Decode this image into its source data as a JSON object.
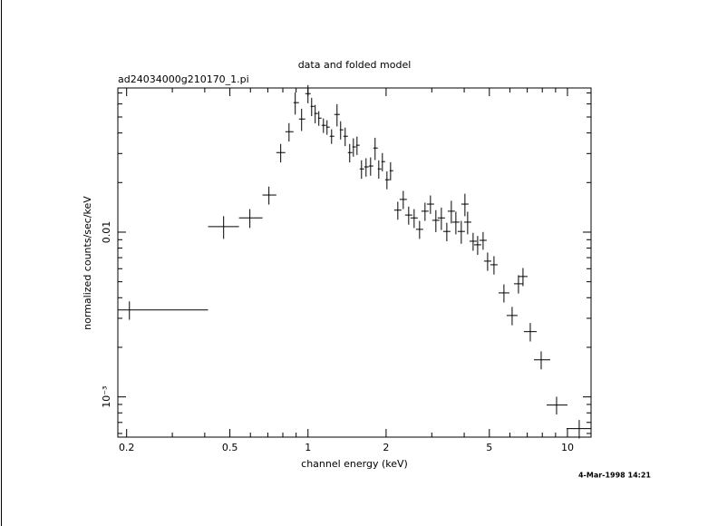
{
  "chart_data": {
    "type": "errorbar",
    "title": "data and folded model",
    "subtitle": "ad24034000g210170_1.pi",
    "x_label": "channel energy (keV)",
    "y_label": "normalized counts/sec/keV",
    "annotation": "4-Mar-1998 14:21",
    "xscale": "log",
    "yscale": "log",
    "xlim": [
      0.185,
      12.33
    ],
    "ylim": [
      0.00057,
      0.075
    ],
    "xticks": [
      0.2,
      0.5,
      1,
      2,
      5,
      10
    ],
    "yticks": [
      0.01,
      {
        "value": 0.001,
        "label": "10⁻³"
      }
    ],
    "xminorticks": [
      0.3,
      0.4,
      0.6,
      0.7,
      0.8,
      0.9,
      3,
      4,
      6,
      7,
      8,
      9
    ],
    "yminorticks": [
      0.0006,
      0.0007,
      0.0008,
      0.0009,
      0.002,
      0.003,
      0.004,
      0.005,
      0.006,
      0.007,
      0.008,
      0.009,
      0.02,
      0.03,
      0.04,
      0.05,
      0.06,
      0.07
    ],
    "series": [
      {
        "color": "#000000",
        "x": [
          0.205,
          0.473,
          0.597,
          0.707,
          0.785,
          0.845,
          0.893,
          0.945,
          1.0,
          1.033,
          1.066,
          1.101,
          1.147,
          1.184,
          1.233,
          1.294,
          1.336,
          1.391,
          1.448,
          1.496,
          1.545,
          1.608,
          1.674,
          1.743,
          1.814,
          1.874,
          1.935,
          2.015,
          2.081,
          2.219,
          2.329,
          2.444,
          2.565,
          2.692,
          2.825,
          2.965,
          3.111,
          3.266,
          3.428,
          3.568,
          3.715,
          3.898,
          4.026,
          4.124,
          4.329,
          4.507,
          4.73,
          4.924,
          5.21,
          5.691,
          6.12,
          6.474,
          6.74,
          7.19,
          7.92,
          9.079,
          11.1
        ],
        "x_low": [
          0.185,
          0.412,
          0.542,
          0.668,
          0.755,
          0.818,
          0.879,
          0.923,
          0.976,
          1.024,
          1.058,
          1.093,
          1.128,
          1.175,
          1.213,
          1.263,
          1.326,
          1.369,
          1.425,
          1.483,
          1.532,
          1.582,
          1.647,
          1.715,
          1.785,
          1.858,
          1.919,
          1.983,
          2.064,
          2.149,
          2.255,
          2.367,
          2.484,
          2.607,
          2.736,
          2.871,
          3.013,
          3.162,
          3.319,
          3.455,
          3.597,
          3.775,
          3.898,
          3.994,
          4.191,
          4.364,
          4.58,
          4.769,
          5.045,
          5.425,
          5.831,
          6.219,
          6.474,
          6.794,
          7.426,
          8.312,
          9.92
        ],
        "x_high": [
          0.412,
          0.542,
          0.668,
          0.755,
          0.818,
          0.879,
          0.923,
          0.976,
          1.024,
          1.058,
          1.093,
          1.128,
          1.175,
          1.213,
          1.263,
          1.326,
          1.369,
          1.425,
          1.483,
          1.532,
          1.582,
          1.647,
          1.715,
          1.785,
          1.858,
          1.919,
          1.983,
          2.064,
          2.131,
          2.292,
          2.405,
          2.524,
          2.649,
          2.78,
          2.917,
          3.062,
          3.213,
          3.373,
          3.54,
          3.685,
          3.836,
          4.026,
          4.158,
          4.26,
          4.471,
          4.655,
          4.885,
          5.086,
          5.381,
          5.973,
          6.422,
          6.74,
          7.018,
          7.607,
          8.583,
          10.0,
          12.33
        ],
        "values": [
          0.00337,
          0.0108,
          0.0122,
          0.0168,
          0.0304,
          0.0407,
          0.0611,
          0.0486,
          0.0693,
          0.058,
          0.0525,
          0.0492,
          0.0445,
          0.0434,
          0.0382,
          0.0518,
          0.0418,
          0.0382,
          0.0304,
          0.0329,
          0.0337,
          0.0242,
          0.0249,
          0.0252,
          0.0324,
          0.0242,
          0.0268,
          0.0208,
          0.0236,
          0.0136,
          0.0158,
          0.0127,
          0.0122,
          0.0104,
          0.0134,
          0.0148,
          0.0118,
          0.0122,
          0.0101,
          0.0134,
          0.0115,
          0.0101,
          0.0148,
          0.0115,
          0.00881,
          0.00838,
          0.00892,
          0.00667,
          0.00634,
          0.00428,
          0.00312,
          0.00486,
          0.00538,
          0.00249,
          0.00168,
          0.000892,
          0.000642
        ],
        "errors": [
          0.00043,
          0.0017,
          0.0016,
          0.0021,
          0.0039,
          0.0052,
          0.0094,
          0.0075,
          0.0088,
          0.0074,
          0.0067,
          0.005,
          0.0045,
          0.0044,
          0.0039,
          0.008,
          0.0053,
          0.0049,
          0.0039,
          0.0042,
          0.0043,
          0.0031,
          0.0032,
          0.0032,
          0.005,
          0.0031,
          0.0034,
          0.0026,
          0.003,
          0.0017,
          0.002,
          0.0016,
          0.0016,
          0.0013,
          0.0017,
          0.0019,
          0.0018,
          0.0019,
          0.0013,
          0.0021,
          0.0018,
          0.0016,
          0.0023,
          0.0018,
          0.0011,
          0.0011,
          0.0011,
          0.00085,
          0.00081,
          0.00054,
          0.0004,
          0.00062,
          0.00068,
          0.00032,
          0.00021,
          0.00011,
          8.2e-05
        ]
      }
    ]
  }
}
